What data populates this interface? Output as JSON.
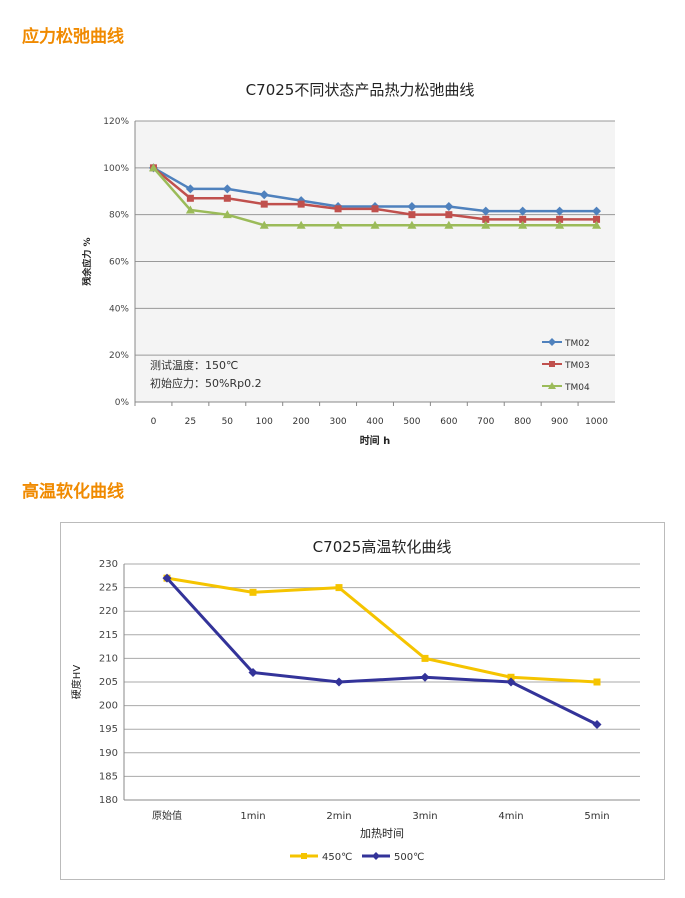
{
  "sections": {
    "stress": "应力松弛曲线",
    "softening": "高温软化曲线"
  },
  "chart_data": [
    {
      "type": "line",
      "title": "C7025不同状态产品热力松弛曲线",
      "xlabel": "时间 h",
      "ylabel": "残余应力 %",
      "categories": [
        "0",
        "25",
        "50",
        "100",
        "200",
        "300",
        "400",
        "500",
        "600",
        "700",
        "800",
        "900",
        "1000"
      ],
      "yticks": [
        "0%",
        "20%",
        "40%",
        "60%",
        "80%",
        "100%",
        "120%"
      ],
      "ylim": [
        0,
        120
      ],
      "grid": true,
      "legend": "right",
      "annotations": [
        "测试温度：150℃",
        "初始应力：50%Rp0.2"
      ],
      "series": [
        {
          "name": "TM02",
          "color": "#4f81bd",
          "marker": "diamond",
          "values": [
            100,
            91,
            91,
            88.5,
            86,
            83.5,
            83.5,
            83.5,
            83.5,
            81.5,
            81.5,
            81.5,
            81.5
          ]
        },
        {
          "name": "TM03",
          "color": "#c0504d",
          "marker": "square",
          "values": [
            100,
            87,
            87,
            84.5,
            84.5,
            82.5,
            82.5,
            80,
            80,
            78,
            78,
            78,
            78
          ]
        },
        {
          "name": "TM04",
          "color": "#9bbb59",
          "marker": "triangle",
          "values": [
            100,
            82,
            80,
            75.5,
            75.5,
            75.5,
            75.5,
            75.5,
            75.5,
            75.5,
            75.5,
            75.5,
            75.5
          ]
        }
      ]
    },
    {
      "type": "line",
      "title": "C7025高温软化曲线",
      "xlabel": "加热时间",
      "ylabel": "硬度HV",
      "categories": [
        "原始值",
        "1min",
        "2min",
        "3min",
        "4min",
        "5min"
      ],
      "yticks": [
        "180",
        "185",
        "190",
        "195",
        "200",
        "205",
        "210",
        "215",
        "220",
        "225",
        "230"
      ],
      "ylim": [
        180,
        230
      ],
      "grid": true,
      "legend": "bottom",
      "series": [
        {
          "name": "450℃",
          "color": "#f5c400",
          "marker": "square",
          "values": [
            227,
            224,
            225,
            210,
            206,
            205
          ]
        },
        {
          "name": "500℃",
          "color": "#333399",
          "marker": "diamond",
          "values": [
            227,
            207,
            205,
            206,
            205,
            196
          ]
        }
      ]
    }
  ]
}
